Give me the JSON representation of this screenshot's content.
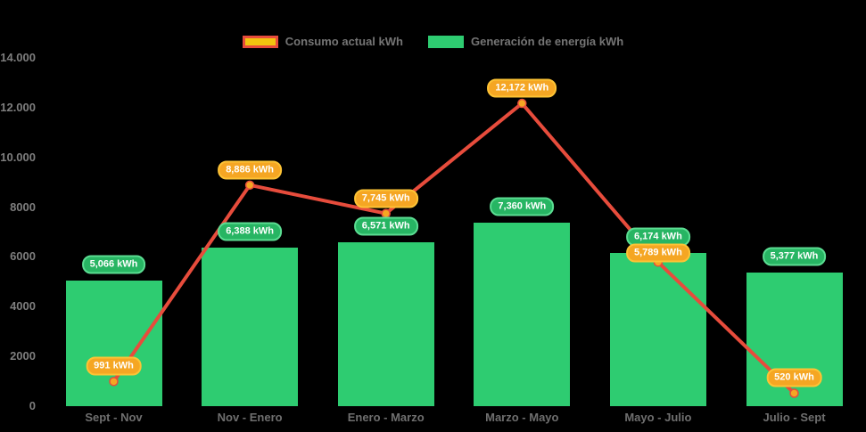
{
  "chart_data": {
    "type": "combo_bar_line",
    "title": "",
    "background": "#000000",
    "grid": false,
    "legend_position": "top",
    "categories": [
      "Sept - Nov",
      "Nov - Enero",
      "Enero - Marzo",
      "Marzo - Mayo",
      "Mayo - Julio",
      "Julio - Sept"
    ],
    "y_axis": {
      "range": [
        0,
        14000
      ],
      "ticks": [
        0,
        2000,
        4000,
        6000,
        8000,
        10000,
        12000,
        14000
      ],
      "tick_labels": [
        "0",
        "2000",
        "4000",
        "6000",
        "8000",
        "10.000",
        "12.000",
        "14.000"
      ]
    },
    "series": [
      {
        "name": "Consumo actual kWh",
        "type": "line",
        "color": "#E74C3C",
        "marker": {
          "fill": "#F5A623",
          "border": "#E74C3C"
        },
        "label_style": {
          "fill": "#F5A623",
          "border": "#FDC335"
        },
        "legend_swatch": {
          "fill": "#F1C40F",
          "border": "#E74C3C"
        },
        "values": [
          991,
          8886,
          7745,
          12172,
          5789,
          520
        ],
        "point_labels": [
          "991 kWh",
          "8,886 kWh",
          "7,745 kWh",
          "12,172 kWh",
          "5,789 kWh",
          "520 kWh"
        ]
      },
      {
        "name": "Generación de energía kWh",
        "type": "bar",
        "color": "#2ECC71",
        "label_style": {
          "fill": "#27B563",
          "border": "#5BDD92"
        },
        "legend_swatch": {
          "fill": "#2ECC71",
          "border": "#2ECC71"
        },
        "values": [
          5066,
          6388,
          6571,
          7360,
          6174,
          5377
        ],
        "point_labels": [
          "5,066 kWh",
          "6,388 kWh",
          "6,571 kWh",
          "7,360 kWh",
          "6,174 kWh",
          "5,377 kWh"
        ]
      }
    ]
  }
}
